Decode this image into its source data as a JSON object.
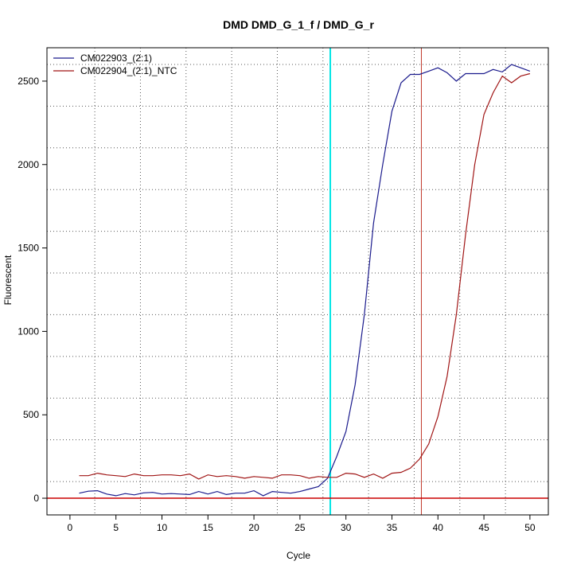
{
  "chart_data": {
    "type": "line",
    "title": "DMD  DMD_G_1_f / DMD_G_r",
    "xlabel": "Cycle",
    "ylabel": "Fluorescent",
    "xlim": [
      -2.5,
      52
    ],
    "ylim": [
      -100,
      2700
    ],
    "x_ticks": [
      0,
      5,
      10,
      15,
      20,
      25,
      30,
      35,
      40,
      45,
      50
    ],
    "y_ticks": [
      0,
      500,
      1000,
      1500,
      2000,
      2500
    ],
    "grid": true,
    "legend_position": "top-left",
    "threshold": {
      "value": 0,
      "color": "#cc0000"
    },
    "markers": [
      {
        "x": 28.3,
        "color": "#00e5e5"
      },
      {
        "x": 38.2,
        "color": "#c0392b"
      }
    ],
    "series": [
      {
        "name": "CM022903_(2:1)",
        "color": "#1a1a8c",
        "x": [
          1,
          2,
          3,
          4,
          5,
          6,
          7,
          8,
          9,
          10,
          11,
          12,
          13,
          14,
          15,
          16,
          17,
          18,
          19,
          20,
          21,
          22,
          23,
          24,
          25,
          26,
          27,
          28,
          29,
          30,
          31,
          32,
          33,
          34,
          35,
          36,
          37,
          38,
          39,
          40,
          41,
          42,
          43,
          44,
          45,
          46,
          47,
          48,
          49,
          50
        ],
        "y": [
          30,
          42,
          45,
          25,
          15,
          28,
          20,
          32,
          35,
          25,
          28,
          25,
          22,
          40,
          25,
          40,
          22,
          30,
          30,
          45,
          15,
          40,
          35,
          30,
          40,
          55,
          70,
          120,
          250,
          400,
          680,
          1100,
          1650,
          2000,
          2320,
          2490,
          2540,
          2540,
          2560,
          2580,
          2550,
          2500,
          2545,
          2545,
          2545,
          2570,
          2555,
          2600,
          2580,
          2560
        ]
      },
      {
        "name": "CM022904_(2:1)_NTC",
        "color": "#a01515",
        "x": [
          1,
          2,
          3,
          4,
          5,
          6,
          7,
          8,
          9,
          10,
          11,
          12,
          13,
          14,
          15,
          16,
          17,
          18,
          19,
          20,
          21,
          22,
          23,
          24,
          25,
          26,
          27,
          28,
          29,
          30,
          31,
          32,
          33,
          34,
          35,
          36,
          37,
          38,
          39,
          40,
          41,
          42,
          43,
          44,
          45,
          46,
          47,
          48,
          49,
          50
        ],
        "y": [
          135,
          135,
          150,
          140,
          135,
          130,
          145,
          135,
          135,
          140,
          140,
          135,
          145,
          115,
          140,
          130,
          135,
          130,
          120,
          130,
          125,
          120,
          140,
          140,
          135,
          120,
          130,
          125,
          125,
          150,
          145,
          125,
          145,
          120,
          150,
          155,
          180,
          235,
          325,
          490,
          730,
          1100,
          1580,
          2000,
          2300,
          2430,
          2530,
          2490,
          2530,
          2545
        ]
      }
    ]
  }
}
